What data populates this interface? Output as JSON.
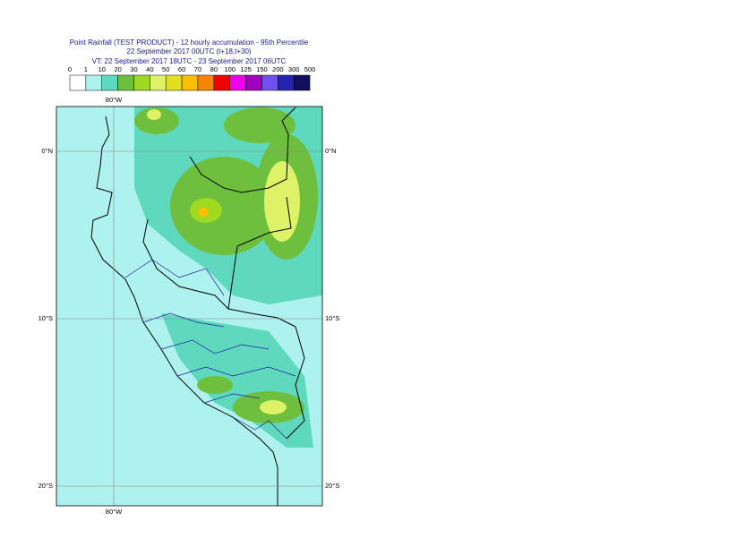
{
  "header": {
    "title": [
      "Point Rainfall (TEST PRODUCT) - 12 hourly accumulation - 95th Percentile",
      "22 September 2017 00UTC (t+18,t+30)",
      "VT: 22 September 2017 18UTC - 23 September 2017 06UTC"
    ]
  },
  "legend": {
    "labels": [
      "0",
      "1",
      "10",
      "20",
      "30",
      "40",
      "50",
      "60",
      "70",
      "80",
      "100",
      "125",
      "150",
      "200",
      "300",
      "500"
    ],
    "colors": [
      "#ffffff",
      "#aef2f0",
      "#5fd9be",
      "#6fbf3f",
      "#9fd920",
      "#ddf266",
      "#e2e01e",
      "#f8c000",
      "#f88600",
      "#f40000",
      "#ee00ee",
      "#a000c0",
      "#7050f0",
      "#2424b0",
      "#10105e"
    ]
  },
  "map": {
    "lon_top": "80°W",
    "lon_bottom": "80°W",
    "lat_left": [
      "0°N",
      "10°S",
      "20°S"
    ],
    "lat_right": [
      "0°N",
      "10°S",
      "20°S"
    ]
  }
}
